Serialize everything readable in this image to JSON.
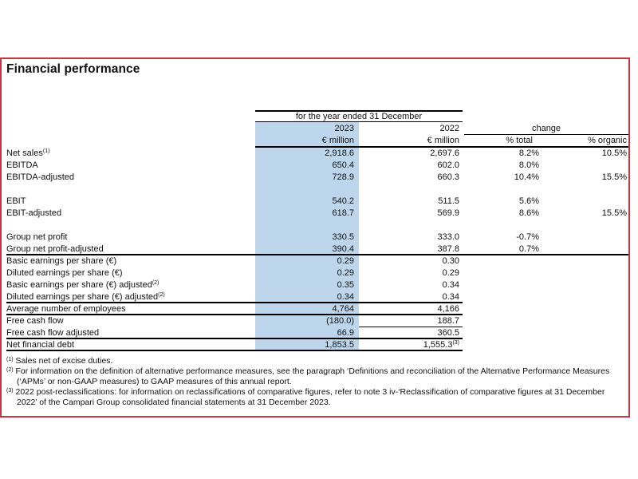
{
  "title": "Financial performance",
  "colors": {
    "accent_red": "#c13745",
    "highlight_blue": "#bdd6ec",
    "rule_black": "#000000"
  },
  "table": {
    "period_header": "for the year ended 31 December",
    "columns": {
      "year_current": "2023",
      "year_prior": "2022",
      "change_label": "change",
      "unit_current": "€ million",
      "unit_prior": "€ million",
      "pct_total_label": "% total",
      "pct_organic_label": "% organic"
    },
    "rows": [
      {
        "label": "Net sales",
        "label_sup": "(1)",
        "v2023": "2,918.6",
        "v2022": "2,697.6",
        "pct_total": "8.2%",
        "pct_organic": "10.5%"
      },
      {
        "label": "EBITDA",
        "v2023": "650.4",
        "v2022": "602.0",
        "pct_total": "8.0%",
        "pct_organic": ""
      },
      {
        "label": "EBITDA-adjusted",
        "v2023": "728.9",
        "v2022": "660.3",
        "pct_total": "10.4%",
        "pct_organic": "15.5%"
      },
      {
        "spacer": true
      },
      {
        "label": "EBIT",
        "v2023": "540.2",
        "v2022": "511.5",
        "pct_total": "5.6%",
        "pct_organic": ""
      },
      {
        "label": "EBIT-adjusted",
        "v2023": "618.7",
        "v2022": "569.9",
        "pct_total": "8.6%",
        "pct_organic": "15.5%"
      },
      {
        "spacer": true
      },
      {
        "label": "Group net profit",
        "v2023": "330.5",
        "v2022": "333.0",
        "pct_total": "-0.7%",
        "pct_organic": ""
      },
      {
        "label": "Group net profit-adjusted",
        "v2023": "390.4",
        "v2022": "387.8",
        "pct_total": "0.7%",
        "pct_organic": "",
        "rule_below": "full"
      },
      {
        "label": "Basic earnings per share (€)",
        "v2023": "0.29",
        "v2022": "0.30"
      },
      {
        "label": "Diluted earnings per share (€)",
        "v2023": "0.29",
        "v2022": "0.29"
      },
      {
        "label": "Basic earnings per share (€) adjusted",
        "label_sup": "(2)",
        "v2023": "0.35",
        "v2022": "0.34"
      },
      {
        "label": "Diluted earnings per share (€) adjusted",
        "label_sup": "(2)",
        "v2023": "0.34",
        "v2022": "0.34",
        "rule_below": "left"
      },
      {
        "label": "Average number of employees",
        "v2023": "4,764",
        "v2022": "4,166",
        "rule_below": "left"
      },
      {
        "label": "Free cash flow",
        "v2023": "(180.0)",
        "v2022": "188.7",
        "rule_below": "col2022"
      },
      {
        "label": "Free cash flow adjusted",
        "v2023": "66.9",
        "v2022": "360.5",
        "rule_below": "left"
      },
      {
        "label": "Net financial debt",
        "v2023": "1,853.5",
        "v2022": "1,555.3",
        "v2022_sup": "(3)",
        "rule_below": "left"
      }
    ]
  },
  "footnotes": [
    {
      "marker": "(1)",
      "text": "Sales net of excise duties."
    },
    {
      "marker": "(2)",
      "text": "For information on the definition of alternative performance measures, see the paragraph ‘Definitions and reconciliation of the Alternative Performance Measures (‘APMs’ or non-GAAP measures) to GAAP measures of this annual report."
    },
    {
      "marker": "(3)",
      "text": "2022 post-reclassifications: for information on reclassifications of comparative figures, refer to note 3 iv-‘Reclassification of comparative figures at 31 December 2022’ of the Campari Group consolidated financial statements at 31 December 2023."
    }
  ]
}
